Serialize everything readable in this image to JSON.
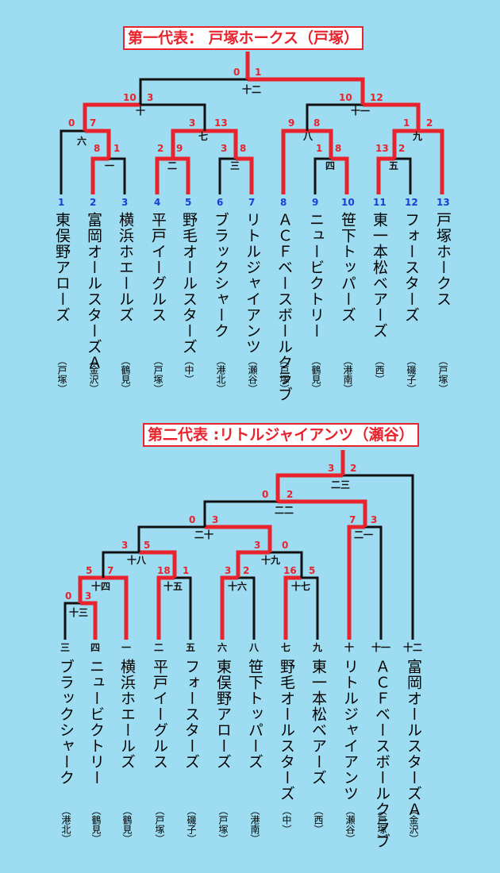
{
  "title1": "第一代表： 戸塚ホークス（戸塚）",
  "title2": "第二代表 :リトルジャイアンツ（瀬谷）",
  "line_colors": {
    "win": "#e8232d",
    "normal": "#111111"
  },
  "bracket1": {
    "teams": [
      {
        "no": "1",
        "name": "東俣野アローズ",
        "area": "（戸塚）"
      },
      {
        "no": "2",
        "name": "富岡オールスターズＡ",
        "area": "（金沢）"
      },
      {
        "no": "3",
        "name": "横浜ホエールズ",
        "area": "（鶴見）"
      },
      {
        "no": "4",
        "name": "平戸イーグルス",
        "area": "（戸塚）"
      },
      {
        "no": "5",
        "name": "野毛オールスターズ",
        "area": "（中）"
      },
      {
        "no": "6",
        "name": "ブラックシャーク",
        "area": "（港北）"
      },
      {
        "no": "7",
        "name": "リトルジャイアンツ",
        "area": "（瀬谷）"
      },
      {
        "no": "8",
        "name": "ＡＣＦベースボールクラブ",
        "area": "（戸塚）"
      },
      {
        "no": "9",
        "name": "ニュービクトリー",
        "area": "（鶴見）"
      },
      {
        "no": "10",
        "name": "笹下トッパーズ",
        "area": "（港南）"
      },
      {
        "no": "11",
        "name": "東一本松ベアーズ",
        "area": "（西）"
      },
      {
        "no": "12",
        "name": "フォースターズ",
        "area": "（磯子）"
      },
      {
        "no": "13",
        "name": "戸塚ホークス",
        "area": "（戸塚）"
      }
    ],
    "games": [
      "一",
      "二",
      "三",
      "四",
      "五",
      "六",
      "七",
      "八",
      "九",
      "十",
      "十一",
      "十二"
    ],
    "scores": [
      "0",
      "1",
      "10",
      "3",
      "10",
      "12",
      "0",
      "7",
      "8",
      "1",
      "2",
      "9",
      "3",
      "13",
      "3",
      "8",
      "9",
      "8",
      "1",
      "8",
      "13",
      "2",
      "1",
      "2"
    ]
  },
  "bracket2": {
    "teams": [
      {
        "no": "三",
        "name": "ブラックシャーク",
        "area": "（港北）"
      },
      {
        "no": "四",
        "name": "ニュービクトリー",
        "area": "（鶴見）"
      },
      {
        "no": "一",
        "name": "横浜ホエールズ",
        "area": "（鶴見）"
      },
      {
        "no": "二",
        "name": "平戸イーグルス",
        "area": "（戸塚）"
      },
      {
        "no": "五",
        "name": "フォースターズ",
        "area": "（磯子）"
      },
      {
        "no": "六",
        "name": "東俣野アローズ",
        "area": "（戸塚）"
      },
      {
        "no": "八",
        "name": "笹下トッパーズ",
        "area": "（港南）"
      },
      {
        "no": "七",
        "name": "野毛オールスターズ",
        "area": "（中）"
      },
      {
        "no": "九",
        "name": "東一本松ベアーズ",
        "area": "（西）"
      },
      {
        "no": "十",
        "name": "リトルジャイアンツ",
        "area": "（瀬谷）"
      },
      {
        "no": "十一",
        "name": "ＡＣＦベースボールクラブ",
        "area": "（戸塚）"
      },
      {
        "no": "十二",
        "name": "富岡オールスターズＡ",
        "area": "（金沢）"
      }
    ],
    "games": [
      "二三",
      "二二",
      "二十",
      "二一",
      "十八",
      "十九",
      "十四",
      "十五",
      "十六",
      "十七",
      "十三"
    ],
    "scores": [
      "3",
      "2",
      "0",
      "2",
      "0",
      "3",
      "7",
      "3",
      "3",
      "5",
      "3",
      "0",
      "5",
      "7",
      "18",
      "1",
      "3",
      "2",
      "16",
      "5",
      "0",
      "3"
    ]
  }
}
